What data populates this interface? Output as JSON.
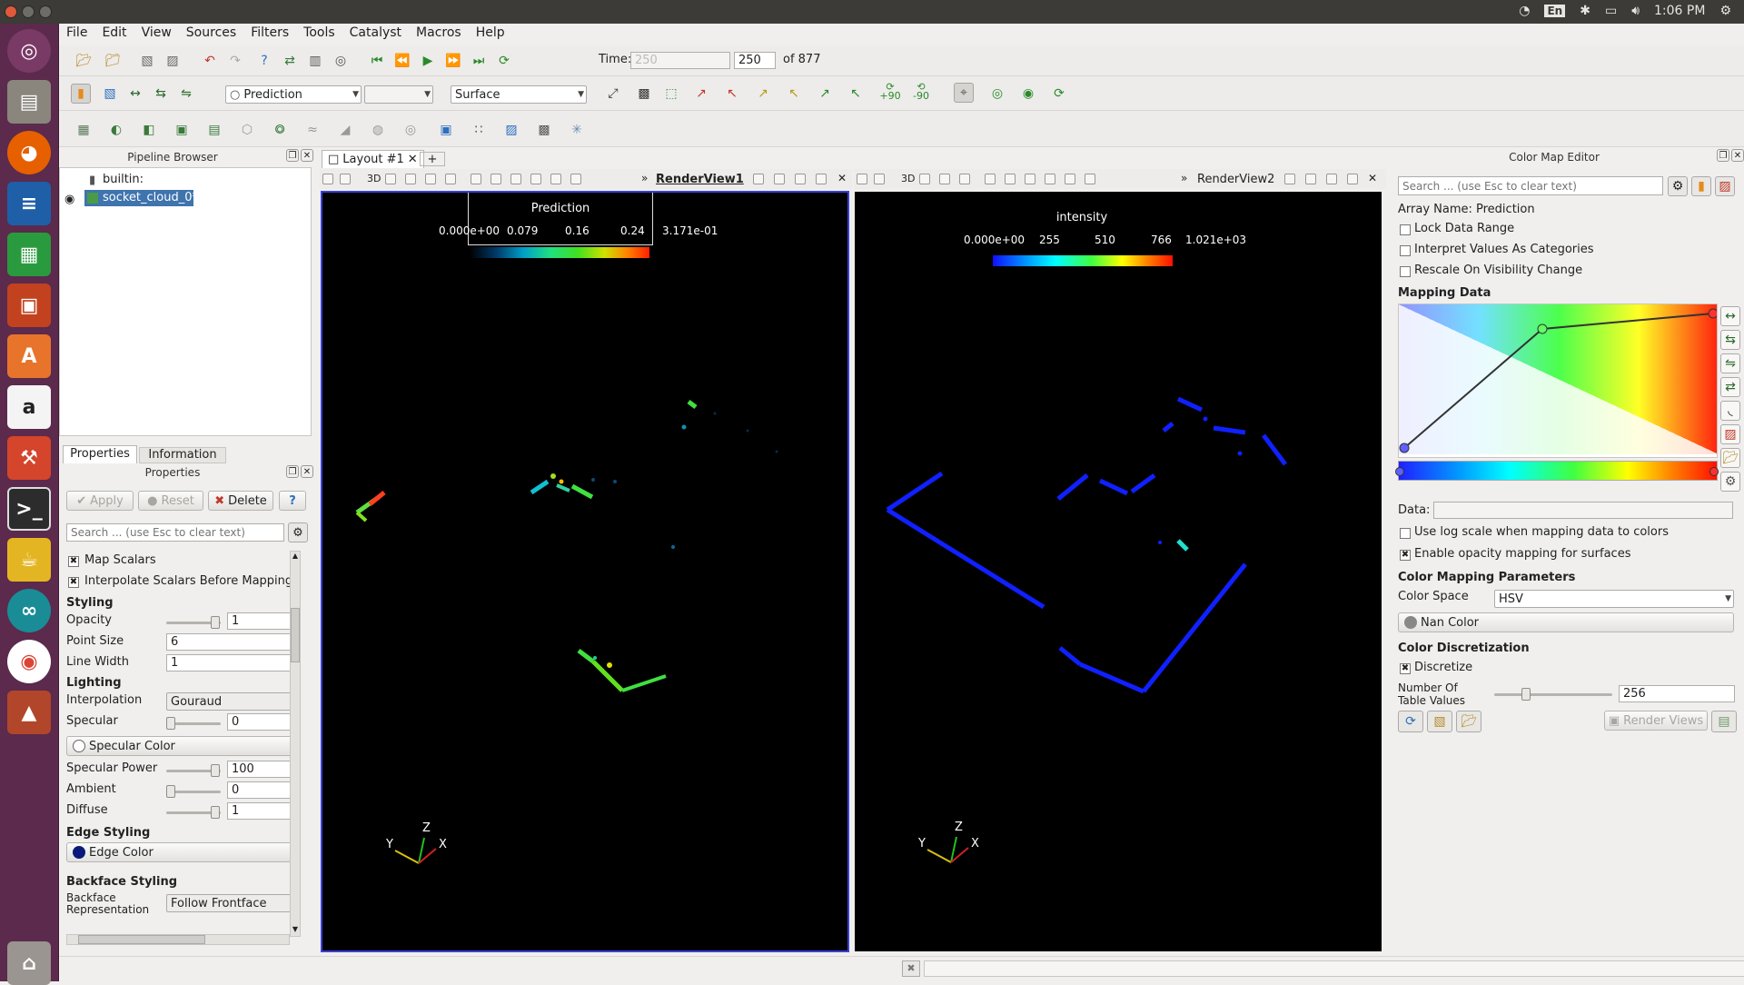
{
  "system": {
    "keyboard": "En",
    "clock": "1:06 PM"
  },
  "launcher": {
    "items": [
      "ubuntu-dash",
      "files",
      "firefox",
      "writer",
      "calc",
      "impress",
      "software-center",
      "amazon",
      "settings",
      "terminal",
      "teapot",
      "arduino",
      "chrome",
      "matlab",
      "trash"
    ]
  },
  "menu": [
    "File",
    "Edit",
    "View",
    "Sources",
    "Filters",
    "Tools",
    "Catalyst",
    "Macros",
    "Help"
  ],
  "toolbar": {
    "time_label": "Time:",
    "time_value": "250",
    "time_step": "250",
    "time_of": "of 877",
    "color_by": "Prediction",
    "component": "",
    "representation": "Surface",
    "rotate_plus": "+90",
    "rotate_minus": "-90"
  },
  "pipeline": {
    "title": "Pipeline Browser",
    "items": [
      {
        "label": "builtin:"
      },
      {
        "label": "socket_cloud_0*"
      }
    ]
  },
  "props_tabs": [
    "Properties",
    "Information"
  ],
  "properties": {
    "title": "Properties",
    "apply": "Apply",
    "reset": "Reset",
    "delete": "Delete",
    "help": "?",
    "search_placeholder": "Search ... (use Esc to clear text)",
    "map_scalars": "Map Scalars",
    "interpolate": "Interpolate Scalars Before Mapping",
    "styling": "Styling",
    "opacity_label": "Opacity",
    "opacity": "1",
    "point_size_label": "Point Size",
    "point_size": "6",
    "line_width_label": "Line Width",
    "line_width": "1",
    "lighting": "Lighting",
    "interpolation_label": "Interpolation",
    "interpolation": "Gouraud",
    "specular_label": "Specular",
    "specular": "0",
    "specular_color": "Specular Color",
    "specular_power_label": "Specular Power",
    "specular_power": "100",
    "ambient_label": "Ambient",
    "ambient": "0",
    "diffuse_label": "Diffuse",
    "diffuse": "1",
    "edge_styling": "Edge Styling",
    "edge_color": "Edge Color",
    "backface_styling": "Backface Styling",
    "backface_label": "Backface Representation",
    "backface": "Follow Frontface"
  },
  "layout": {
    "tab": "Layout #1",
    "add": "+",
    "view1_name": "RenderView1",
    "view2_name": "RenderView2",
    "mode_3d": "3D"
  },
  "view1": {
    "bar_title": "Prediction",
    "ticks": [
      "0.000e+00",
      "0.079",
      "0.16",
      "0.24",
      "3.171e-01"
    ]
  },
  "view2": {
    "bar_title": "intensity",
    "ticks": [
      "0.000e+00",
      "255",
      "510",
      "766",
      "1.021e+03"
    ]
  },
  "axes": {
    "y": "Y",
    "z": "Z",
    "x": "X"
  },
  "cme": {
    "title": "Color Map Editor",
    "search_placeholder": "Search ... (use Esc to clear text)",
    "array_name": "Array Name: Prediction",
    "lock": "Lock Data Range",
    "categories": "Interpret Values As Categories",
    "rescale": "Rescale On Visibility Change",
    "mapping_data": "Mapping Data",
    "data_label": "Data:",
    "log_scale": "Use log scale when mapping data to colors",
    "opacity_mapping": "Enable opacity mapping for surfaces",
    "params": "Color Mapping Parameters",
    "color_space_label": "Color Space",
    "color_space": "HSV",
    "nan_color": "Nan Color",
    "discretization": "Color Discretization",
    "discretize": "Discretize",
    "table_values_label": "Number Of Table Values",
    "table_values": "256",
    "render_views": "Render Views"
  }
}
